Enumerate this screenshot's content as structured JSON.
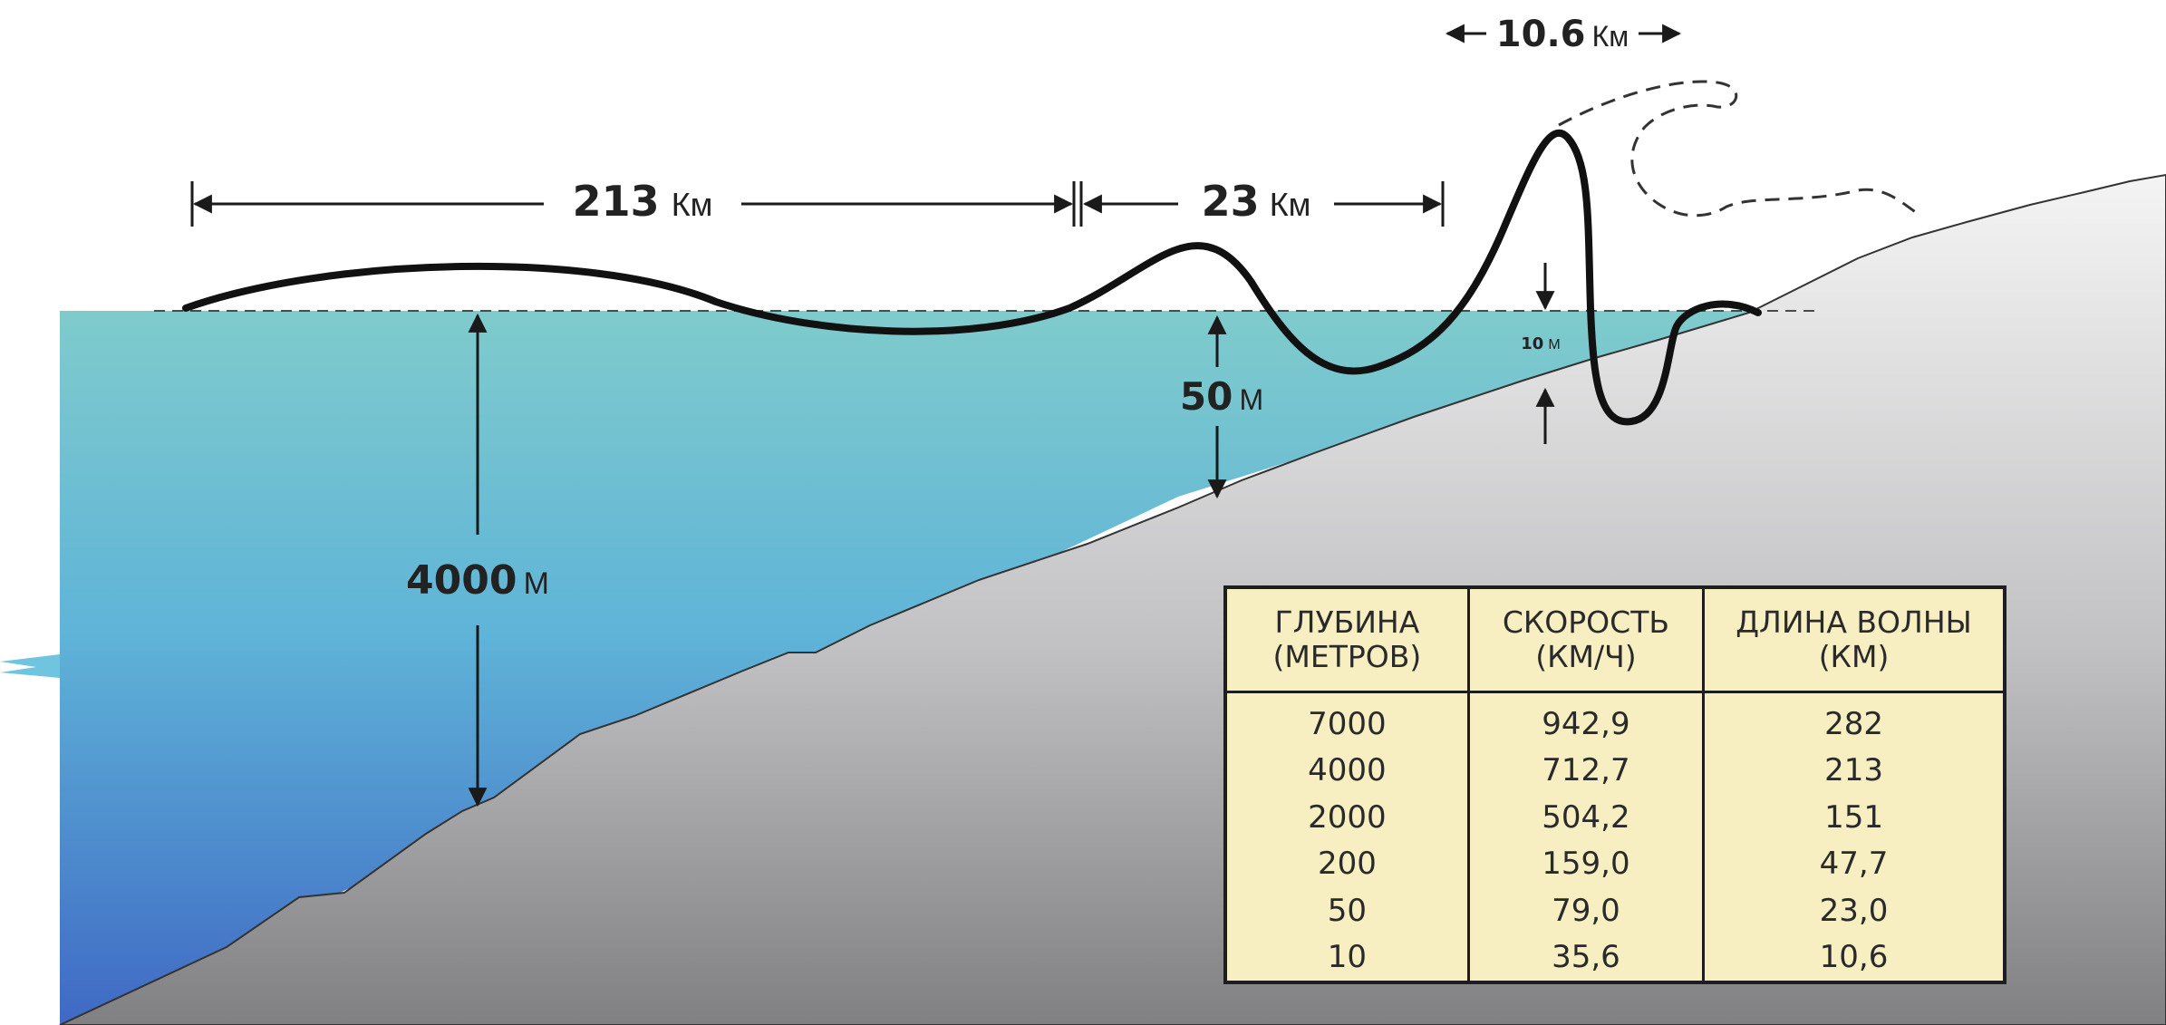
{
  "labels": {
    "wavelength_deep": {
      "value": "213",
      "unit": "Км"
    },
    "wavelength_shelf": {
      "value": "23",
      "unit": "Км"
    },
    "wavelength_coast": {
      "value": "10.6",
      "unit": "Км"
    },
    "depth_deep": {
      "value": "4000",
      "unit": "М"
    },
    "depth_shelf": {
      "value": "50",
      "unit": "М"
    },
    "depth_coast": {
      "value": "10",
      "unit": "М"
    }
  },
  "colors": {
    "water_top": "#7fcbcc",
    "water_bottom": "#3f69c4",
    "seabed_top": "#f2f2f2",
    "seabed_bottom": "#8a8a8a",
    "table_background": "#f7efc2"
  },
  "table": {
    "headers": [
      {
        "line1": "ГЛУБИНА",
        "line2": "(МЕТРОВ)"
      },
      {
        "line1": "СКОРОСТЬ",
        "line2": "(КМ/Ч)"
      },
      {
        "line1": "ДЛИНА  ВОЛНЫ",
        "line2": "(КМ)"
      }
    ],
    "rows": [
      [
        "7000",
        "942,9",
        "282"
      ],
      [
        "4000",
        "712,7",
        "213"
      ],
      [
        "2000",
        "504,2",
        "151"
      ],
      [
        "200",
        "159,0",
        "47,7"
      ],
      [
        "50",
        "79,0",
        "23,0"
      ],
      [
        "10",
        "35,6",
        "10,6"
      ]
    ]
  }
}
